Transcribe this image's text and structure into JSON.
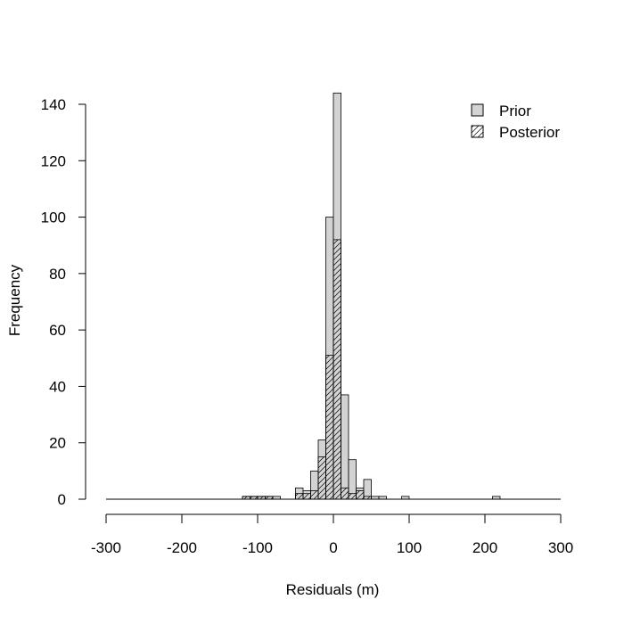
{
  "chart_data": {
    "type": "bar",
    "subtype": "overlaid-histogram",
    "xlabel": "Residuals (m)",
    "ylabel": "Frequency",
    "xlim": [
      -300,
      300
    ],
    "ylim": [
      0,
      145
    ],
    "x_ticks": [
      -300,
      -200,
      -100,
      0,
      100,
      200,
      300
    ],
    "y_ticks": [
      0,
      20,
      40,
      60,
      80,
      100,
      120,
      140
    ],
    "bin_width": 10,
    "grid": false,
    "legend_position": "top-right",
    "series": [
      {
        "name": "Prior",
        "fill": "#d3d3d3",
        "pattern": "solid",
        "bins": [
          {
            "from": -120,
            "to": -110,
            "count": 1
          },
          {
            "from": -110,
            "to": -100,
            "count": 1
          },
          {
            "from": -100,
            "to": -90,
            "count": 1
          },
          {
            "from": -90,
            "to": -80,
            "count": 1
          },
          {
            "from": -80,
            "to": -70,
            "count": 1
          },
          {
            "from": -50,
            "to": -40,
            "count": 4
          },
          {
            "from": -40,
            "to": -30,
            "count": 3
          },
          {
            "from": -30,
            "to": -20,
            "count": 10
          },
          {
            "from": -20,
            "to": -10,
            "count": 21
          },
          {
            "from": -10,
            "to": 0,
            "count": 100
          },
          {
            "from": 0,
            "to": 10,
            "count": 144
          },
          {
            "from": 10,
            "to": 20,
            "count": 37
          },
          {
            "from": 20,
            "to": 30,
            "count": 14
          },
          {
            "from": 30,
            "to": 40,
            "count": 4
          },
          {
            "from": 40,
            "to": 50,
            "count": 7
          },
          {
            "from": 50,
            "to": 60,
            "count": 1
          },
          {
            "from": 60,
            "to": 70,
            "count": 1
          },
          {
            "from": 90,
            "to": 100,
            "count": 1
          },
          {
            "from": 210,
            "to": 220,
            "count": 1
          }
        ]
      },
      {
        "name": "Posterior",
        "fill": "#ffffff",
        "pattern": "diagonal-hatch",
        "bins": [
          {
            "from": -120,
            "to": -110,
            "count": 1
          },
          {
            "from": -110,
            "to": -100,
            "count": 1
          },
          {
            "from": -100,
            "to": -90,
            "count": 1
          },
          {
            "from": -90,
            "to": -80,
            "count": 1
          },
          {
            "from": -50,
            "to": -40,
            "count": 2
          },
          {
            "from": -40,
            "to": -30,
            "count": 2
          },
          {
            "from": -30,
            "to": -20,
            "count": 3
          },
          {
            "from": -20,
            "to": -10,
            "count": 15
          },
          {
            "from": -10,
            "to": 0,
            "count": 51
          },
          {
            "from": 0,
            "to": 10,
            "count": 92
          },
          {
            "from": 10,
            "to": 20,
            "count": 4
          },
          {
            "from": 20,
            "to": 30,
            "count": 2
          },
          {
            "from": 30,
            "to": 40,
            "count": 3
          },
          {
            "from": 40,
            "to": 50,
            "count": 1
          }
        ]
      }
    ]
  }
}
